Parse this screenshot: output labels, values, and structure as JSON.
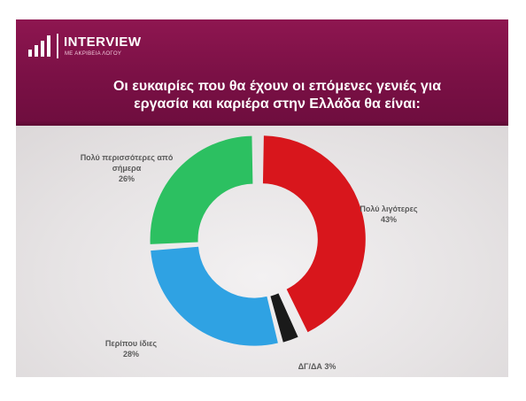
{
  "header": {
    "brand": "INTERVIEW",
    "brand_tagline": "ΜΕ ΑΚΡΙΒΕΙΑ ΛΟΓΟΥ",
    "title_line1": "Οι ευκαιρίες που θα έχουν οι επόμενες γενιές για",
    "title_line2": "εργασία και καριέρα στην Ελλάδα θα είναι:",
    "bg_color": "#7f1248"
  },
  "chart_data": {
    "type": "pie",
    "style": "donut",
    "slices": [
      {
        "label": "Πολύ λιγότερες",
        "value": 43,
        "value_text": "43%",
        "color": "#d8161c"
      },
      {
        "label": "ΔΓ/ΔΑ",
        "value": 3,
        "value_text": "3%",
        "color": "#1a1a1a"
      },
      {
        "label": "Περίπου ίδιες",
        "value": 28,
        "value_text": "28%",
        "color": "#2fa2e3"
      },
      {
        "label": "Πολύ περισσότερες από σήμερα",
        "value": 26,
        "value_text": "26%",
        "color": "#2cc061"
      }
    ],
    "labels": [
      {
        "line1": "Πολύ λιγότερες",
        "line2": "43%"
      },
      {
        "line1": "ΔΓ/ΔΑ 3%"
      },
      {
        "line1": "Περίπου ίδιες",
        "line2": "28%"
      },
      {
        "line1": "Πολύ περισσότερες από",
        "line2": "σήμερα",
        "line3": "26%"
      }
    ]
  }
}
